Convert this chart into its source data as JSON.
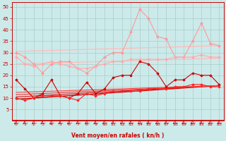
{
  "xlabel": "Vent moyen/en rafales ( kn/h )",
  "xlim": [
    -0.5,
    23.5
  ],
  "ylim": [
    0,
    52
  ],
  "yticks": [
    5,
    10,
    15,
    20,
    25,
    30,
    35,
    40,
    45,
    50
  ],
  "xticks": [
    0,
    1,
    2,
    3,
    4,
    5,
    6,
    7,
    8,
    9,
    10,
    11,
    12,
    13,
    14,
    15,
    16,
    17,
    18,
    19,
    20,
    21,
    22,
    23
  ],
  "background_color": "#cceaea",
  "grid_color": "#aacccc",
  "series": [
    {
      "name": "light_pink_jagged",
      "color": "#ff9999",
      "lw": 0.8,
      "marker": "D",
      "markersize": 2.0,
      "x": [
        0,
        1,
        2,
        3,
        4,
        5,
        6,
        7,
        8,
        9,
        10,
        11,
        12,
        13,
        14,
        15,
        16,
        17,
        18,
        19,
        20,
        21,
        22,
        23
      ],
      "y": [
        30,
        28,
        25,
        21,
        25,
        26,
        26,
        23,
        21,
        24,
        28,
        30,
        30,
        39,
        49,
        45,
        37,
        36,
        28,
        28,
        35,
        43,
        34,
        33
      ]
    },
    {
      "name": "medium_pink_flat",
      "color": "#ffaaaa",
      "lw": 0.8,
      "marker": "D",
      "markersize": 2.0,
      "x": [
        0,
        1,
        2,
        3,
        4,
        5,
        6,
        7,
        8,
        9,
        10,
        11,
        12,
        13,
        14,
        15,
        16,
        17,
        18,
        19,
        20,
        21,
        22,
        23
      ],
      "y": [
        28,
        25,
        24,
        25,
        26,
        25,
        24,
        23,
        23,
        24,
        25,
        26,
        26,
        27,
        27,
        27,
        27,
        27,
        28,
        28,
        28,
        29,
        28,
        28
      ]
    },
    {
      "name": "linear_upper_pink",
      "color": "#ffbbbb",
      "lw": 0.9,
      "marker": null,
      "x": [
        0,
        23
      ],
      "y": [
        30.5,
        33.0
      ]
    },
    {
      "name": "linear_lower_pink",
      "color": "#ffbbbb",
      "lw": 0.9,
      "marker": null,
      "x": [
        0,
        23
      ],
      "y": [
        25.0,
        27.5
      ]
    },
    {
      "name": "dark_red_jagged",
      "color": "#cc0000",
      "lw": 0.8,
      "marker": "D",
      "markersize": 1.8,
      "x": [
        0,
        1,
        2,
        3,
        4,
        5,
        6,
        7,
        8,
        9,
        10,
        11,
        12,
        13,
        14,
        15,
        16,
        17,
        18,
        19,
        20,
        21,
        22,
        23
      ],
      "y": [
        18,
        14,
        10,
        12,
        18,
        11,
        10,
        12,
        17,
        12,
        14,
        19,
        20,
        20,
        26,
        25,
        21,
        15,
        18,
        18,
        21,
        20,
        20,
        16
      ]
    },
    {
      "name": "red_lower_jagged",
      "color": "#ff2222",
      "lw": 0.8,
      "marker": "D",
      "markersize": 1.8,
      "x": [
        0,
        1,
        2,
        3,
        4,
        5,
        6,
        7,
        8,
        9,
        10,
        11,
        12,
        13,
        14,
        15,
        16,
        17,
        18,
        19,
        20,
        21,
        22,
        23
      ],
      "y": [
        10,
        9,
        10,
        11,
        11,
        11,
        10,
        9,
        12,
        11,
        12,
        13,
        13,
        13,
        13,
        14,
        14,
        14,
        15,
        15,
        16,
        16,
        15,
        15
      ]
    },
    {
      "name": "linear_red1",
      "color": "#cc0000",
      "lw": 1.0,
      "marker": null,
      "x": [
        0,
        23
      ],
      "y": [
        9.5,
        15.5
      ]
    },
    {
      "name": "linear_red2",
      "color": "#dd1111",
      "lw": 0.8,
      "marker": null,
      "x": [
        0,
        23
      ],
      "y": [
        10.5,
        15.5
      ]
    },
    {
      "name": "linear_red3",
      "color": "#ee3333",
      "lw": 0.8,
      "marker": null,
      "x": [
        0,
        23
      ],
      "y": [
        11.5,
        15.5
      ]
    },
    {
      "name": "linear_red4",
      "color": "#ff4444",
      "lw": 0.8,
      "marker": null,
      "x": [
        0,
        23
      ],
      "y": [
        12.5,
        15.5
      ]
    }
  ]
}
